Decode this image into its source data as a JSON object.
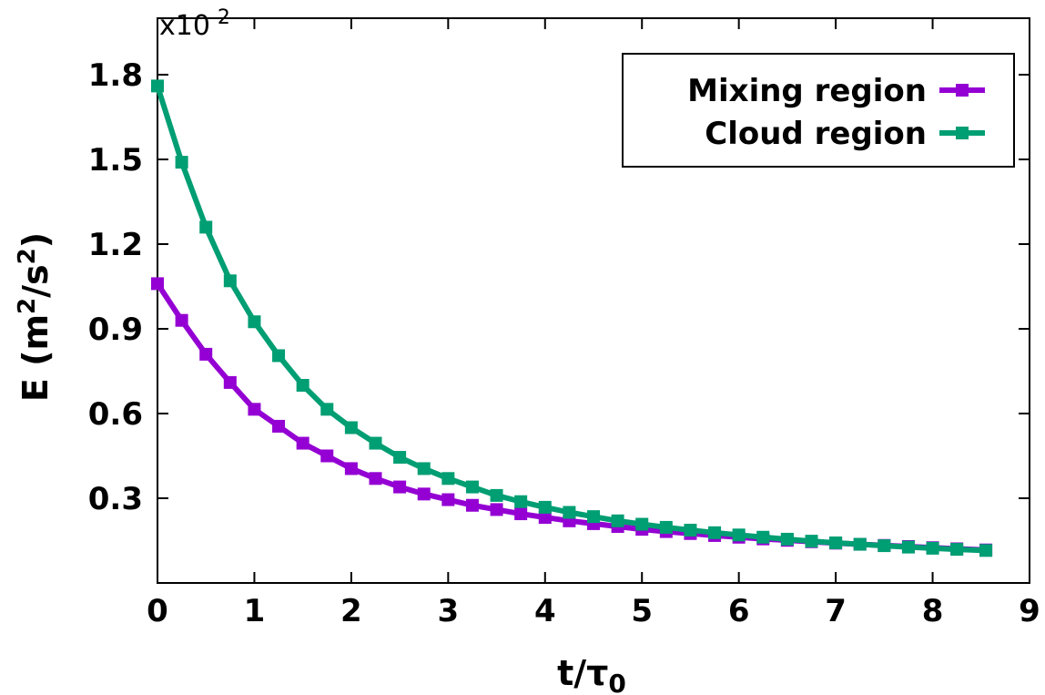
{
  "chart_data": {
    "type": "line",
    "xlabel": "t/τ",
    "xlabel_sub": "0",
    "ylabel": "E (m",
    "ylabel_sup1": "2",
    "ylabel_mid": "/s",
    "ylabel_sup2": "2",
    "ylabel_end": ")",
    "y_multiplier_base": "x10",
    "y_multiplier_exp": "-2",
    "xlim": [
      0,
      9
    ],
    "ylim": [
      0.0,
      2.0
    ],
    "x_ticks": [
      0,
      1,
      2,
      3,
      4,
      5,
      6,
      7,
      8,
      9
    ],
    "x_tick_labels": [
      "0",
      "1",
      "2",
      "3",
      "4",
      "5",
      "6",
      "7",
      "8",
      "9"
    ],
    "y_ticks": [
      0.3,
      0.6,
      0.9,
      1.2,
      1.5,
      1.8
    ],
    "y_tick_labels": [
      "0.3",
      "0.6",
      "0.9",
      "1.2",
      "1.5",
      "1.8"
    ],
    "grid": false,
    "legend_position": "top-right",
    "series": [
      {
        "name": "Mixing region",
        "color": "#9400d3",
        "x": [
          0,
          0.25,
          0.5,
          0.75,
          1.0,
          1.25,
          1.5,
          1.75,
          2.0,
          2.25,
          2.5,
          2.75,
          3.0,
          3.25,
          3.5,
          3.75,
          4.0,
          4.25,
          4.5,
          4.75,
          5.0,
          5.25,
          5.5,
          5.75,
          6.0,
          6.25,
          6.5,
          6.75,
          7.0,
          7.25,
          7.5,
          7.75,
          8.0,
          8.25,
          8.55
        ],
        "y": [
          1.06,
          0.93,
          0.81,
          0.71,
          0.615,
          0.555,
          0.495,
          0.45,
          0.405,
          0.37,
          0.34,
          0.315,
          0.295,
          0.275,
          0.26,
          0.245,
          0.232,
          0.22,
          0.21,
          0.2,
          0.19,
          0.182,
          0.175,
          0.168,
          0.162,
          0.156,
          0.151,
          0.146,
          0.141,
          0.137,
          0.133,
          0.129,
          0.125,
          0.121,
          0.117
        ]
      },
      {
        "name": "Cloud region",
        "color": "#009e73",
        "x": [
          0,
          0.25,
          0.5,
          0.75,
          1.0,
          1.25,
          1.5,
          1.75,
          2.0,
          2.25,
          2.5,
          2.75,
          3.0,
          3.25,
          3.5,
          3.75,
          4.0,
          4.25,
          4.5,
          4.75,
          5.0,
          5.25,
          5.5,
          5.75,
          6.0,
          6.25,
          6.5,
          6.75,
          7.0,
          7.25,
          7.5,
          7.75,
          8.0,
          8.25,
          8.55
        ],
        "y": [
          1.76,
          1.49,
          1.26,
          1.07,
          0.925,
          0.805,
          0.7,
          0.615,
          0.55,
          0.495,
          0.445,
          0.405,
          0.37,
          0.34,
          0.31,
          0.288,
          0.268,
          0.25,
          0.235,
          0.22,
          0.208,
          0.197,
          0.187,
          0.178,
          0.17,
          0.162,
          0.155,
          0.148,
          0.142,
          0.137,
          0.132,
          0.127,
          0.123,
          0.119,
          0.115
        ]
      }
    ]
  }
}
